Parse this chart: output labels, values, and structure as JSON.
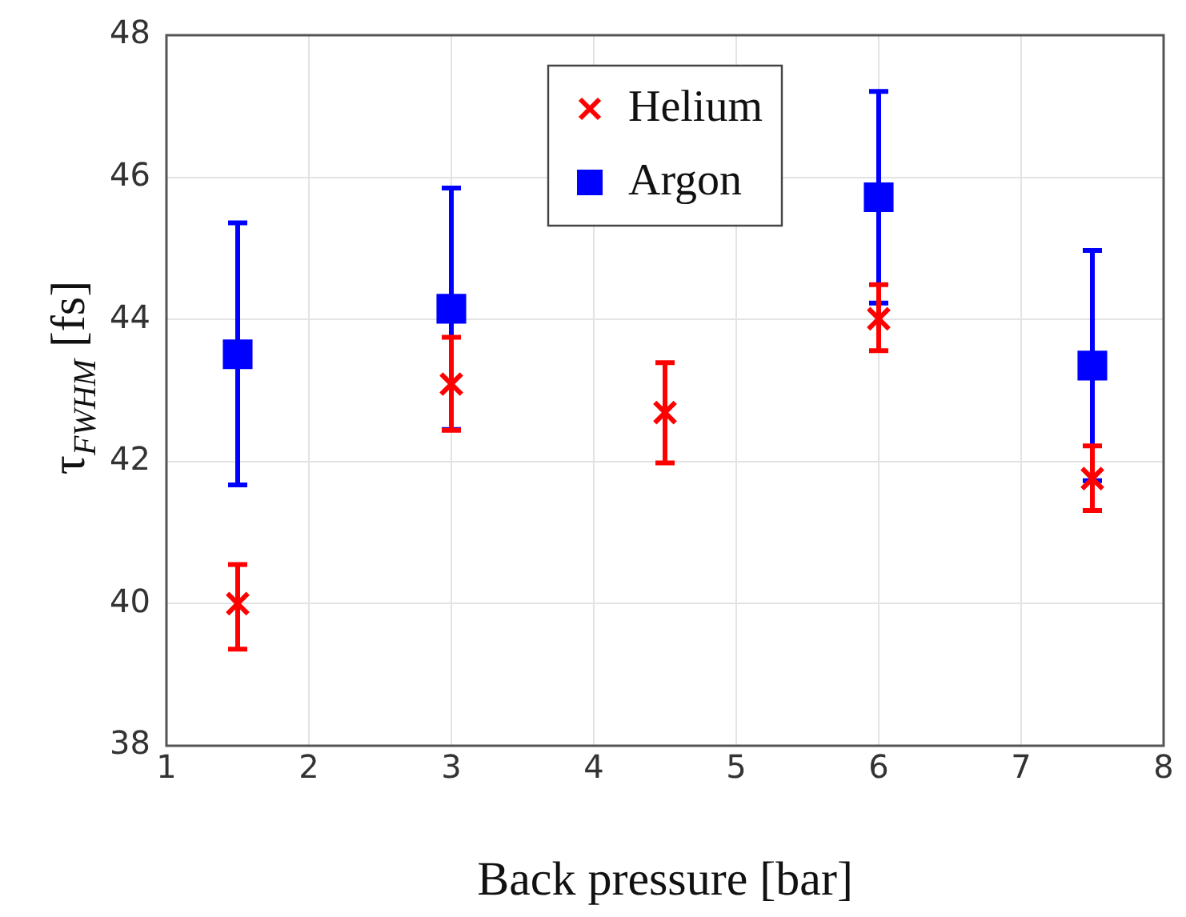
{
  "chart_data": {
    "type": "scatter",
    "xlabel": "Back pressure [bar]",
    "ylabel": "τ$_{FWHM}$ [fs]",
    "xlim": [
      1,
      8
    ],
    "xticks": [
      1,
      2,
      3,
      4,
      5,
      6,
      7,
      8
    ],
    "ylim": [
      38,
      48
    ],
    "yticks": [
      38,
      40,
      42,
      44,
      46,
      48
    ],
    "grid": true,
    "legend": "top",
    "series": [
      {
        "name": "Helium",
        "color": "#ff0000",
        "marker": "cross",
        "x": [
          1.5,
          3,
          4.5,
          6,
          7.5
        ],
        "values": [
          40.0,
          43.09,
          42.69,
          44.01,
          41.76
        ],
        "errors": [
          [
            39.36,
            40.55
          ],
          [
            42.44,
            43.75
          ],
          [
            41.98,
            43.39
          ],
          [
            43.56,
            44.49
          ],
          [
            41.31,
            42.22
          ]
        ]
      },
      {
        "name": "Argon",
        "color": "#0000ff",
        "marker": "square",
        "x": [
          1.5,
          3,
          6,
          7.5
        ],
        "values": [
          43.51,
          44.15,
          45.72,
          43.35
        ],
        "errors": [
          [
            41.67,
            45.36
          ],
          [
            42.45,
            45.85
          ],
          [
            44.23,
            47.21
          ],
          [
            41.73,
            44.97
          ]
        ]
      }
    ]
  }
}
